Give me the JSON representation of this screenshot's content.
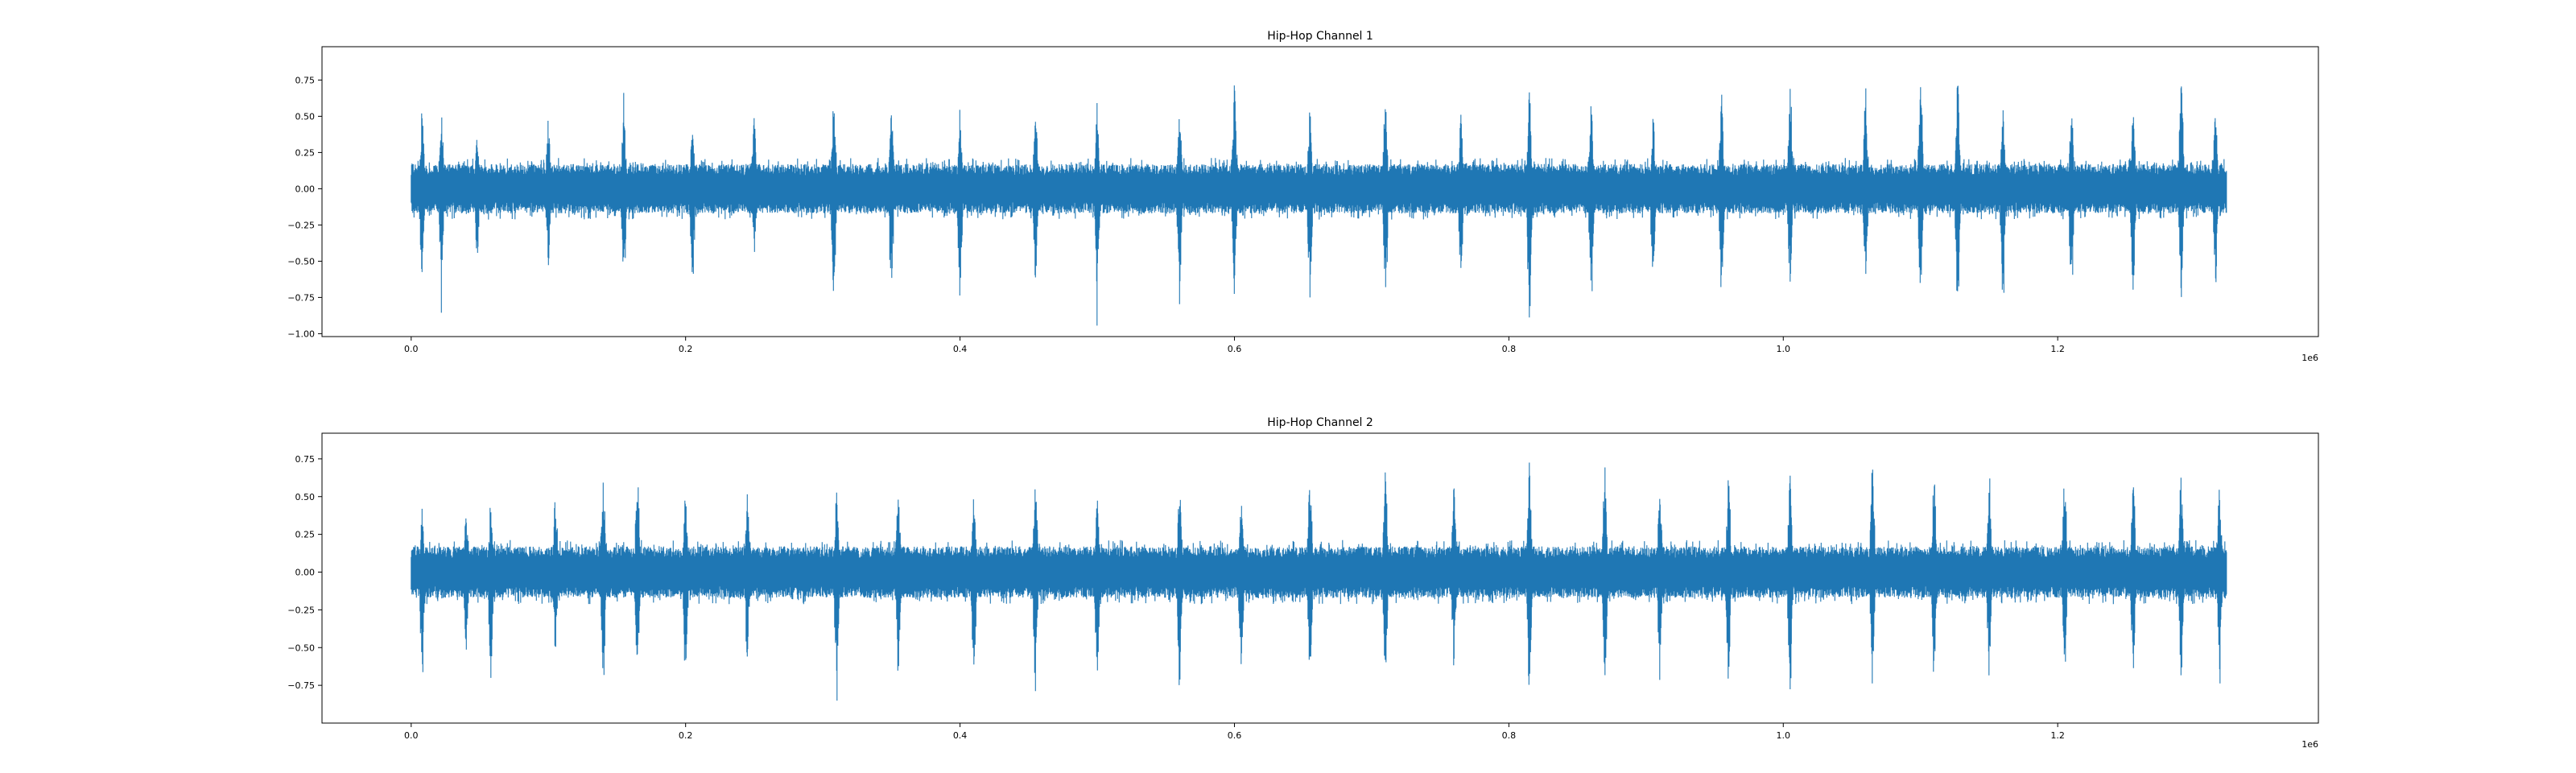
{
  "chart_data": [
    {
      "type": "line",
      "title": "Hip-Hop Channel 1",
      "xlabel": "",
      "ylabel": "",
      "xlim": [
        -65000,
        1390000
      ],
      "ylim": [
        -1.02,
        0.98
      ],
      "x_ticks": [
        0.0,
        0.2,
        0.4,
        0.6,
        0.8,
        1.0,
        1.2
      ],
      "x_tick_labels": [
        "0.0",
        "0.2",
        "0.4",
        "0.6",
        "0.8",
        "1.0",
        "1.2"
      ],
      "x_offset_label": "1e6",
      "y_ticks": [
        -1.0,
        -0.75,
        -0.5,
        -0.25,
        0.0,
        0.25,
        0.5,
        0.75
      ],
      "y_tick_labels": [
        "−1.00",
        "−0.75",
        "−0.50",
        "−0.25",
        "0.00",
        "0.25",
        "0.50",
        "0.75"
      ],
      "grid": false,
      "series": [
        {
          "color": "#1f77b4",
          "x_range": [
            0,
            1323000
          ],
          "amplitude_peaks": [
            {
              "x": 8000,
              "min": -0.74,
              "max": 0.54
            },
            {
              "x": 22000,
              "min": -0.72,
              "max": 0.6
            },
            {
              "x": 48000,
              "min": -0.55,
              "max": 0.42
            },
            {
              "x": 100000,
              "min": -0.62,
              "max": 0.55
            },
            {
              "x": 155000,
              "min": -0.78,
              "max": 0.58
            },
            {
              "x": 205000,
              "min": -0.72,
              "max": 0.52
            },
            {
              "x": 250000,
              "min": -0.55,
              "max": 0.6
            },
            {
              "x": 308000,
              "min": -0.91,
              "max": 0.7
            },
            {
              "x": 350000,
              "min": -0.75,
              "max": 0.62
            },
            {
              "x": 400000,
              "min": -0.86,
              "max": 0.5
            },
            {
              "x": 455000,
              "min": -0.72,
              "max": 0.6
            },
            {
              "x": 500000,
              "min": -0.82,
              "max": 0.55
            },
            {
              "x": 560000,
              "min": -0.88,
              "max": 0.62
            },
            {
              "x": 600000,
              "min": -0.76,
              "max": 0.75
            },
            {
              "x": 655000,
              "min": -0.87,
              "max": 0.6
            },
            {
              "x": 710000,
              "min": -0.88,
              "max": 0.72
            },
            {
              "x": 765000,
              "min": -0.7,
              "max": 0.55
            },
            {
              "x": 815000,
              "min": -0.88,
              "max": 0.74
            },
            {
              "x": 860000,
              "min": -0.82,
              "max": 0.66
            },
            {
              "x": 905000,
              "min": -0.75,
              "max": 0.5
            },
            {
              "x": 955000,
              "min": -0.82,
              "max": 0.7
            },
            {
              "x": 1005000,
              "min": -0.78,
              "max": 0.72
            },
            {
              "x": 1060000,
              "min": -0.72,
              "max": 0.75
            },
            {
              "x": 1100000,
              "min": -0.85,
              "max": 0.82
            },
            {
              "x": 1127000,
              "min": -0.93,
              "max": 0.92
            },
            {
              "x": 1160000,
              "min": -0.9,
              "max": 0.6
            },
            {
              "x": 1210000,
              "min": -0.78,
              "max": 0.7
            },
            {
              "x": 1255000,
              "min": -0.82,
              "max": 0.65
            },
            {
              "x": 1290000,
              "min": -0.8,
              "max": 0.82
            },
            {
              "x": 1315000,
              "min": -0.75,
              "max": 0.6
            }
          ]
        }
      ]
    },
    {
      "type": "line",
      "title": "Hip-Hop Channel 2",
      "xlabel": "",
      "ylabel": "",
      "xlim": [
        -65000,
        1390000
      ],
      "ylim": [
        -1.0,
        0.92
      ],
      "x_ticks": [
        0.0,
        0.2,
        0.4,
        0.6,
        0.8,
        1.0,
        1.2
      ],
      "x_tick_labels": [
        "0.0",
        "0.2",
        "0.4",
        "0.6",
        "0.8",
        "1.0",
        "1.2"
      ],
      "x_offset_label": "1e6",
      "y_ticks": [
        -0.75,
        -0.5,
        -0.25,
        0.0,
        0.25,
        0.5,
        0.75
      ],
      "y_tick_labels": [
        "−0.75",
        "−0.50",
        "−0.25",
        "0.00",
        "0.25",
        "0.50",
        "0.75"
      ],
      "grid": false,
      "series": [
        {
          "color": "#1f77b4",
          "x_range": [
            0,
            1323000
          ],
          "amplitude_peaks": [
            {
              "x": 8000,
              "min": -0.68,
              "max": 0.45
            },
            {
              "x": 40000,
              "min": -0.58,
              "max": 0.42
            },
            {
              "x": 58000,
              "min": -0.78,
              "max": 0.45
            },
            {
              "x": 105000,
              "min": -0.6,
              "max": 0.55
            },
            {
              "x": 140000,
              "min": -0.75,
              "max": 0.72
            },
            {
              "x": 165000,
              "min": -0.8,
              "max": 0.7
            },
            {
              "x": 200000,
              "min": -0.72,
              "max": 0.5
            },
            {
              "x": 245000,
              "min": -0.6,
              "max": 0.55
            },
            {
              "x": 310000,
              "min": -0.82,
              "max": 0.58
            },
            {
              "x": 355000,
              "min": -0.7,
              "max": 0.6
            },
            {
              "x": 410000,
              "min": -0.78,
              "max": 0.55
            },
            {
              "x": 455000,
              "min": -0.88,
              "max": 0.68
            },
            {
              "x": 500000,
              "min": -0.78,
              "max": 0.55
            },
            {
              "x": 560000,
              "min": -0.85,
              "max": 0.68
            },
            {
              "x": 605000,
              "min": -0.75,
              "max": 0.58
            },
            {
              "x": 655000,
              "min": -0.88,
              "max": 0.74
            },
            {
              "x": 710000,
              "min": -0.82,
              "max": 0.72
            },
            {
              "x": 760000,
              "min": -0.7,
              "max": 0.6
            },
            {
              "x": 815000,
              "min": -0.8,
              "max": 0.75
            },
            {
              "x": 870000,
              "min": -0.78,
              "max": 0.68
            },
            {
              "x": 910000,
              "min": -0.75,
              "max": 0.6
            },
            {
              "x": 960000,
              "min": -0.8,
              "max": 0.7
            },
            {
              "x": 1005000,
              "min": -0.82,
              "max": 0.72
            },
            {
              "x": 1065000,
              "min": -0.78,
              "max": 0.85
            },
            {
              "x": 1110000,
              "min": -0.8,
              "max": 0.68
            },
            {
              "x": 1150000,
              "min": -0.72,
              "max": 0.62
            },
            {
              "x": 1205000,
              "min": -0.82,
              "max": 0.7
            },
            {
              "x": 1255000,
              "min": -0.75,
              "max": 0.66
            },
            {
              "x": 1290000,
              "min": -0.78,
              "max": 0.68
            },
            {
              "x": 1318000,
              "min": -0.7,
              "max": 0.62
            }
          ]
        }
      ]
    }
  ]
}
